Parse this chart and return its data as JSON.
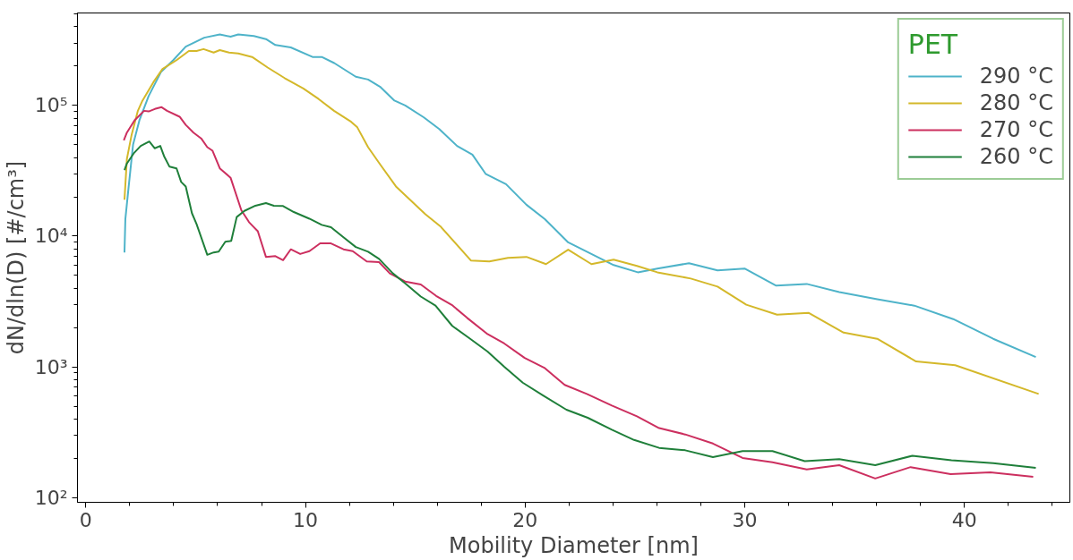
{
  "chart_data": {
    "type": "line",
    "xlabel": "Mobility Diameter [nm]",
    "ylabel": "dN/dln(D) [#/cm³]",
    "legend_title": "PET",
    "legend": "top right",
    "grid": false,
    "log": "y",
    "xlim": [
      -0.38,
      44.8
    ],
    "xticks": [
      0,
      10,
      20,
      30,
      40
    ],
    "ylim": [
      92,
      510000
    ],
    "yticks": [
      {
        "value": 100,
        "label": "10²"
      },
      {
        "value": 1000,
        "label": "10³"
      },
      {
        "value": 10000,
        "label": "10⁴"
      },
      {
        "value": 100000,
        "label": "10⁵"
      }
    ],
    "series": [
      {
        "name": "290 °C",
        "color": "#4eb3c9",
        "x": [
          1.76,
          1.8,
          1.94,
          2.15,
          2.44,
          2.86,
          3.42,
          3.98,
          4.55,
          5.39,
          6.1,
          6.59,
          6.94,
          7.65,
          8.2,
          8.63,
          9.33,
          10.32,
          10.74,
          11.31,
          12.29,
          12.85,
          13.42,
          14.05,
          14.54,
          15.39,
          16.09,
          16.9,
          17.6,
          18.2,
          19.13,
          20.06,
          20.9,
          21.96,
          24.03,
          25.13,
          26.02,
          27.46,
          28.76,
          29.99,
          31.43,
          32.82,
          34.3,
          36.03,
          37.72,
          39.49,
          41.31,
          43.25
        ],
        "values": [
          7500,
          13500,
          23000,
          50000,
          77000,
          118000,
          180000,
          222000,
          282000,
          330000,
          349000,
          336000,
          349000,
          340000,
          322000,
          290000,
          278000,
          235000,
          235000,
          211000,
          166000,
          158000,
          138000,
          109000,
          100000,
          81000,
          66000,
          49000,
          42000,
          30000,
          25000,
          17400,
          13500,
          8960,
          6010,
          5290,
          5650,
          6210,
          5470,
          5650,
          4180,
          4310,
          3730,
          3290,
          2940,
          2320,
          1640,
          1190
        ]
      },
      {
        "name": "280 °C",
        "color": "#d4b82a",
        "x": [
          1.76,
          1.87,
          2.08,
          2.37,
          2.58,
          3.07,
          3.49,
          4.13,
          4.69,
          5.04,
          5.36,
          5.82,
          6.1,
          6.52,
          6.94,
          7.57,
          8.28,
          9.05,
          9.9,
          10.6,
          11.3,
          12.08,
          12.36,
          12.85,
          13.42,
          14.12,
          15.46,
          16.14,
          17.53,
          18.37,
          19.22,
          20.06,
          20.95,
          21.96,
          23.02,
          24.03,
          25.09,
          26.02,
          27.54,
          28.76,
          30.07,
          31.47,
          32.9,
          34.5,
          36.03,
          37.8,
          39.58,
          43.38
        ],
        "values": [
          19000,
          39000,
          59000,
          91000,
          109000,
          150000,
          190000,
          222000,
          261000,
          261000,
          270000,
          254000,
          265000,
          254000,
          250000,
          235000,
          195000,
          162000,
          135000,
          112000,
          91000,
          75000,
          68000,
          48000,
          35000,
          24000,
          14700,
          11900,
          6520,
          6410,
          6830,
          6940,
          6110,
          7880,
          6110,
          6620,
          5920,
          5290,
          4740,
          4110,
          2990,
          2510,
          2590,
          1830,
          1640,
          1100,
          1030,
          621
        ]
      },
      {
        "name": "270 °C",
        "color": "#cc2f5f",
        "x": [
          1.73,
          1.87,
          2.22,
          2.65,
          2.86,
          3.14,
          3.45,
          3.7,
          4.27,
          4.55,
          4.9,
          5.25,
          5.53,
          5.77,
          6.1,
          6.59,
          7.08,
          7.43,
          7.83,
          8.2,
          8.63,
          8.98,
          9.33,
          9.76,
          10.18,
          10.67,
          11.16,
          11.73,
          12.15,
          12.79,
          13.35,
          13.84,
          14.54,
          15.25,
          15.95,
          16.66,
          17.36,
          18.25,
          19.05,
          19.98,
          20.87,
          21.8,
          22.81,
          23.95,
          25.09,
          26.1,
          27.29,
          28.55,
          29.9,
          31.26,
          32.82,
          34.3,
          35.94,
          37.55,
          39.37,
          41.18,
          43.13
        ],
        "values": [
          54000,
          62000,
          77000,
          91000,
          90000,
          94000,
          97000,
          91000,
          82000,
          71000,
          62000,
          56000,
          48000,
          45000,
          33000,
          28000,
          15800,
          12800,
          10900,
          6940,
          7040,
          6550,
          7930,
          7310,
          7680,
          8810,
          8810,
          7930,
          7680,
          6410,
          6330,
          5190,
          4500,
          4270,
          3490,
          2980,
          2370,
          1800,
          1510,
          1170,
          985,
          728,
          621,
          505,
          418,
          340,
          304,
          259,
          201,
          186,
          164,
          177,
          140,
          171,
          151,
          156,
          144
        ]
      },
      {
        "name": "260 °C",
        "color": "#1f7f3a",
        "x": [
          1.76,
          1.87,
          2.18,
          2.5,
          2.89,
          3.14,
          3.39,
          3.56,
          3.81,
          4.13,
          4.34,
          4.55,
          4.83,
          5.04,
          5.53,
          5.82,
          6.05,
          6.35,
          6.62,
          6.87,
          7.22,
          7.72,
          8.2,
          8.56,
          8.98,
          9.47,
          10.18,
          10.74,
          11.16,
          11.73,
          12.29,
          12.85,
          13.35,
          13.98,
          14.54,
          15.25,
          15.92,
          16.68,
          17.5,
          18.29,
          19.05,
          19.89,
          20.82,
          21.88,
          22.85,
          23.95,
          24.96,
          26.1,
          27.29,
          28.55,
          29.9,
          31.26,
          32.73,
          34.3,
          35.94,
          37.63,
          39.41,
          41.31,
          43.25
        ],
        "values": [
          32000,
          36000,
          43000,
          49000,
          53000,
          47000,
          49000,
          41000,
          34000,
          33000,
          26000,
          24000,
          15000,
          12400,
          7200,
          7510,
          7620,
          9060,
          9200,
          14000,
          15600,
          17100,
          17900,
          17100,
          17000,
          15300,
          13600,
          12200,
          11700,
          9800,
          8260,
          7610,
          6700,
          5190,
          4360,
          3450,
          2940,
          2060,
          1640,
          1310,
          1000,
          757,
          604,
          470,
          408,
          330,
          276,
          240,
          230,
          204,
          227,
          227,
          190,
          197,
          177,
          209,
          193,
          183,
          169
        ]
      }
    ]
  }
}
